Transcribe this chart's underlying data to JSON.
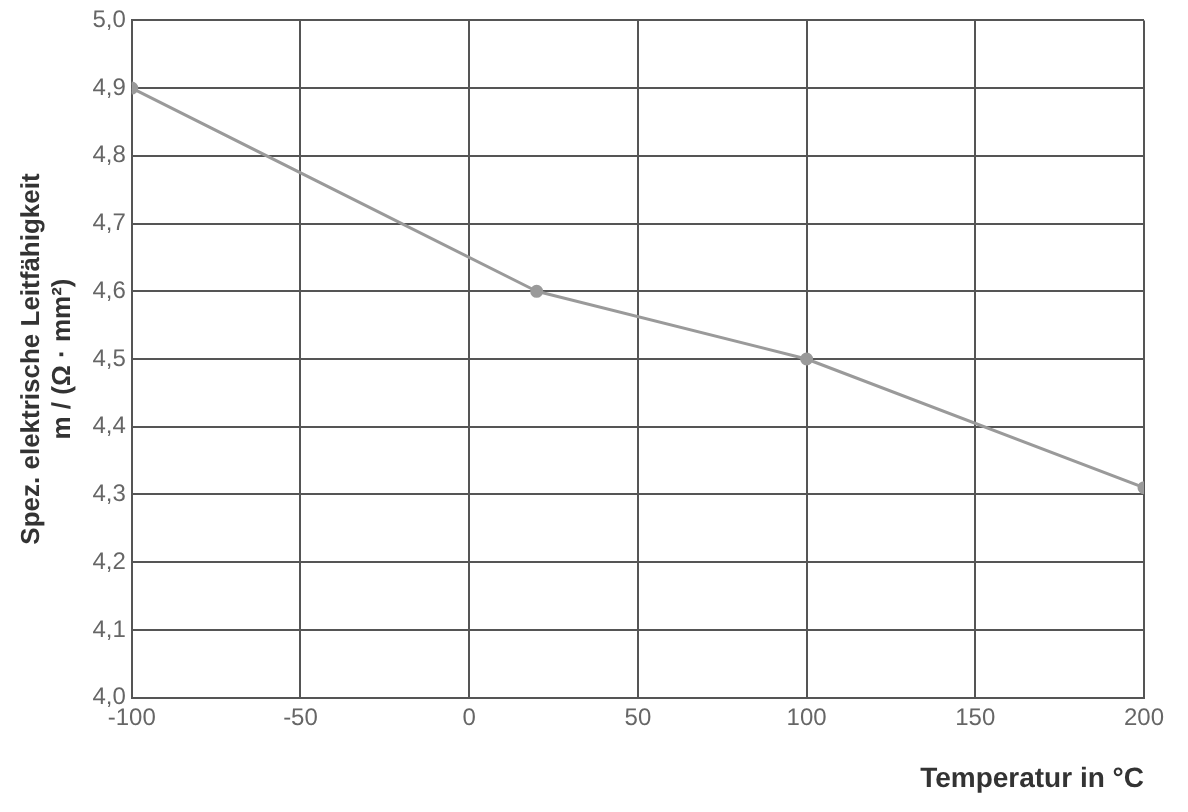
{
  "chart_data": {
    "type": "line",
    "xlabel": "Temperatur in °C",
    "ylabel": "Spez. elektrische Leitfähigkeit\nm / (Ω · mm²)",
    "x": [
      -100,
      20,
      100,
      200
    ],
    "series": [
      {
        "color": "#9a9a9a",
        "values": [
          4.9,
          4.6,
          4.5,
          4.31
        ]
      }
    ],
    "xlim": [
      -100,
      200
    ],
    "xticks": [
      -100,
      -50,
      0,
      50,
      100,
      150,
      200
    ],
    "ylim": [
      4.0,
      5.0
    ],
    "yticks": [
      {
        "value": 4.0,
        "label": "4,0"
      },
      {
        "value": 4.1,
        "label": "4,1"
      },
      {
        "value": 4.2,
        "label": "4,2"
      },
      {
        "value": 4.3,
        "label": "4,3"
      },
      {
        "value": 4.4,
        "label": "4,4"
      },
      {
        "value": 4.5,
        "label": "4,5"
      },
      {
        "value": 4.6,
        "label": "4,6"
      },
      {
        "value": 4.7,
        "label": "4,7"
      },
      {
        "value": 4.8,
        "label": "4,8"
      },
      {
        "value": 4.9,
        "label": "4,9"
      },
      {
        "value": 5.0,
        "label": "5,0"
      }
    ],
    "grid": true,
    "legend": false,
    "marker": "circle",
    "line_style": "solid"
  }
}
